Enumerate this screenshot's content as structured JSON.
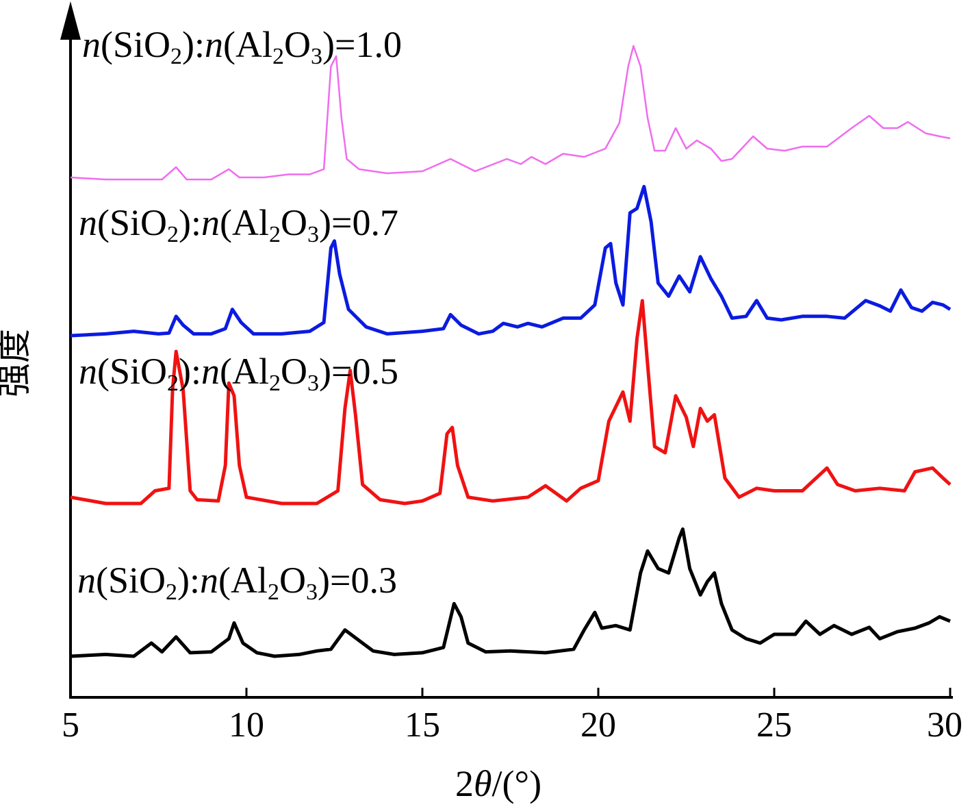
{
  "chart_data": {
    "type": "line",
    "xlabel_prefix": "2",
    "xlabel_theta": "θ",
    "xlabel_suffix": "/(°)",
    "ylabel": "强度",
    "xlim": [
      5,
      30
    ],
    "x_ticks": [
      5,
      10,
      15,
      20,
      25,
      30
    ],
    "y_scale": "arbitrary units, vertically offset traces",
    "grid": false,
    "series": [
      {
        "label_ratio": "1.0",
        "color": "#f06cf0",
        "points": [
          [
            5.0,
            0.02
          ],
          [
            6.0,
            0.0
          ],
          [
            7.0,
            0.0
          ],
          [
            7.6,
            0.0
          ],
          [
            8.0,
            0.12
          ],
          [
            8.3,
            0.0
          ],
          [
            9.0,
            0.0
          ],
          [
            9.5,
            0.1
          ],
          [
            9.8,
            0.02
          ],
          [
            10.5,
            0.02
          ],
          [
            11.2,
            0.05
          ],
          [
            11.8,
            0.05
          ],
          [
            12.2,
            0.1
          ],
          [
            12.4,
            1.1
          ],
          [
            12.55,
            1.2
          ],
          [
            12.7,
            0.6
          ],
          [
            12.85,
            0.2
          ],
          [
            13.2,
            0.1
          ],
          [
            14.0,
            0.06
          ],
          [
            15.0,
            0.08
          ],
          [
            15.8,
            0.2
          ],
          [
            16.5,
            0.08
          ],
          [
            17.4,
            0.2
          ],
          [
            17.8,
            0.15
          ],
          [
            18.1,
            0.22
          ],
          [
            18.5,
            0.15
          ],
          [
            19.0,
            0.25
          ],
          [
            19.6,
            0.22
          ],
          [
            20.2,
            0.3
          ],
          [
            20.6,
            0.55
          ],
          [
            20.85,
            1.1
          ],
          [
            21.0,
            1.3
          ],
          [
            21.2,
            1.1
          ],
          [
            21.4,
            0.6
          ],
          [
            21.6,
            0.28
          ],
          [
            21.9,
            0.28
          ],
          [
            22.2,
            0.5
          ],
          [
            22.5,
            0.3
          ],
          [
            22.8,
            0.38
          ],
          [
            23.2,
            0.3
          ],
          [
            23.5,
            0.18
          ],
          [
            23.8,
            0.2
          ],
          [
            24.4,
            0.42
          ],
          [
            24.8,
            0.3
          ],
          [
            25.3,
            0.28
          ],
          [
            25.8,
            0.32
          ],
          [
            26.5,
            0.32
          ],
          [
            27.2,
            0.5
          ],
          [
            27.7,
            0.62
          ],
          [
            28.1,
            0.5
          ],
          [
            28.5,
            0.5
          ],
          [
            28.8,
            0.56
          ],
          [
            29.3,
            0.45
          ],
          [
            29.7,
            0.42
          ],
          [
            30.0,
            0.4
          ]
        ]
      },
      {
        "label_ratio": "0.7",
        "color": "#0b1be0",
        "points": [
          [
            5.0,
            0.0
          ],
          [
            6.0,
            0.02
          ],
          [
            6.8,
            0.05
          ],
          [
            7.5,
            0.02
          ],
          [
            7.8,
            0.03
          ],
          [
            8.0,
            0.22
          ],
          [
            8.2,
            0.12
          ],
          [
            8.5,
            0.02
          ],
          [
            9.0,
            0.02
          ],
          [
            9.4,
            0.08
          ],
          [
            9.6,
            0.3
          ],
          [
            9.85,
            0.15
          ],
          [
            10.2,
            0.02
          ],
          [
            11.0,
            0.02
          ],
          [
            11.8,
            0.05
          ],
          [
            12.2,
            0.15
          ],
          [
            12.4,
            1.0
          ],
          [
            12.5,
            1.08
          ],
          [
            12.65,
            0.7
          ],
          [
            12.9,
            0.3
          ],
          [
            13.4,
            0.1
          ],
          [
            14.0,
            0.02
          ],
          [
            15.0,
            0.05
          ],
          [
            15.6,
            0.08
          ],
          [
            15.8,
            0.24
          ],
          [
            16.1,
            0.12
          ],
          [
            16.6,
            0.02
          ],
          [
            17.0,
            0.05
          ],
          [
            17.3,
            0.14
          ],
          [
            17.7,
            0.1
          ],
          [
            18.0,
            0.14
          ],
          [
            18.4,
            0.1
          ],
          [
            19.0,
            0.2
          ],
          [
            19.5,
            0.2
          ],
          [
            19.9,
            0.35
          ],
          [
            20.2,
            1.0
          ],
          [
            20.35,
            1.05
          ],
          [
            20.5,
            0.6
          ],
          [
            20.7,
            0.35
          ],
          [
            20.9,
            1.4
          ],
          [
            21.1,
            1.45
          ],
          [
            21.3,
            1.7
          ],
          [
            21.5,
            1.3
          ],
          [
            21.7,
            0.6
          ],
          [
            22.0,
            0.45
          ],
          [
            22.3,
            0.68
          ],
          [
            22.6,
            0.5
          ],
          [
            22.9,
            0.9
          ],
          [
            23.2,
            0.65
          ],
          [
            23.5,
            0.45
          ],
          [
            23.8,
            0.2
          ],
          [
            24.2,
            0.22
          ],
          [
            24.5,
            0.4
          ],
          [
            24.8,
            0.2
          ],
          [
            25.2,
            0.18
          ],
          [
            25.8,
            0.22
          ],
          [
            26.5,
            0.22
          ],
          [
            27.0,
            0.2
          ],
          [
            27.6,
            0.4
          ],
          [
            28.0,
            0.34
          ],
          [
            28.3,
            0.28
          ],
          [
            28.6,
            0.52
          ],
          [
            28.9,
            0.32
          ],
          [
            29.2,
            0.28
          ],
          [
            29.5,
            0.38
          ],
          [
            29.8,
            0.35
          ],
          [
            30.0,
            0.3
          ]
        ]
      },
      {
        "label_ratio": "0.5",
        "color": "#f01212",
        "points": [
          [
            5.0,
            0.05
          ],
          [
            6.0,
            0.0
          ],
          [
            7.0,
            0.0
          ],
          [
            7.4,
            0.1
          ],
          [
            7.8,
            0.12
          ],
          [
            7.9,
            0.9
          ],
          [
            8.0,
            1.2
          ],
          [
            8.2,
            0.9
          ],
          [
            8.4,
            0.1
          ],
          [
            8.6,
            0.03
          ],
          [
            9.2,
            0.02
          ],
          [
            9.4,
            0.3
          ],
          [
            9.5,
            0.95
          ],
          [
            9.65,
            0.85
          ],
          [
            9.8,
            0.3
          ],
          [
            10.0,
            0.05
          ],
          [
            11.0,
            0.0
          ],
          [
            12.0,
            0.0
          ],
          [
            12.6,
            0.1
          ],
          [
            12.8,
            0.75
          ],
          [
            12.95,
            1.05
          ],
          [
            13.1,
            0.7
          ],
          [
            13.3,
            0.15
          ],
          [
            13.8,
            0.03
          ],
          [
            14.5,
            0.0
          ],
          [
            15.0,
            0.02
          ],
          [
            15.5,
            0.08
          ],
          [
            15.7,
            0.55
          ],
          [
            15.85,
            0.6
          ],
          [
            16.0,
            0.3
          ],
          [
            16.3,
            0.05
          ],
          [
            17.0,
            0.02
          ],
          [
            18.0,
            0.05
          ],
          [
            18.5,
            0.14
          ],
          [
            18.8,
            0.08
          ],
          [
            19.1,
            0.02
          ],
          [
            19.5,
            0.12
          ],
          [
            20.0,
            0.18
          ],
          [
            20.3,
            0.65
          ],
          [
            20.7,
            0.88
          ],
          [
            20.9,
            0.65
          ],
          [
            21.1,
            1.3
          ],
          [
            21.25,
            1.6
          ],
          [
            21.4,
            1.1
          ],
          [
            21.6,
            0.45
          ],
          [
            21.9,
            0.4
          ],
          [
            22.2,
            0.85
          ],
          [
            22.5,
            0.68
          ],
          [
            22.7,
            0.45
          ],
          [
            22.9,
            0.75
          ],
          [
            23.1,
            0.65
          ],
          [
            23.3,
            0.7
          ],
          [
            23.6,
            0.2
          ],
          [
            24.0,
            0.05
          ],
          [
            24.5,
            0.12
          ],
          [
            25.0,
            0.1
          ],
          [
            25.8,
            0.1
          ],
          [
            26.5,
            0.28
          ],
          [
            26.8,
            0.15
          ],
          [
            27.3,
            0.1
          ],
          [
            28.0,
            0.12
          ],
          [
            28.7,
            0.1
          ],
          [
            29.0,
            0.25
          ],
          [
            29.5,
            0.28
          ],
          [
            29.8,
            0.2
          ],
          [
            30.0,
            0.15
          ]
        ]
      },
      {
        "label_ratio": "0.3",
        "color": "#000000",
        "points": [
          [
            5.0,
            0.0
          ],
          [
            6.0,
            0.02
          ],
          [
            6.8,
            0.0
          ],
          [
            7.3,
            0.15
          ],
          [
            7.6,
            0.05
          ],
          [
            8.0,
            0.22
          ],
          [
            8.4,
            0.04
          ],
          [
            9.0,
            0.05
          ],
          [
            9.5,
            0.2
          ],
          [
            9.65,
            0.38
          ],
          [
            9.9,
            0.15
          ],
          [
            10.3,
            0.04
          ],
          [
            10.8,
            0.0
          ],
          [
            11.5,
            0.02
          ],
          [
            12.0,
            0.06
          ],
          [
            12.4,
            0.08
          ],
          [
            12.8,
            0.3
          ],
          [
            13.2,
            0.18
          ],
          [
            13.6,
            0.06
          ],
          [
            14.2,
            0.02
          ],
          [
            15.0,
            0.04
          ],
          [
            15.6,
            0.1
          ],
          [
            15.9,
            0.6
          ],
          [
            16.1,
            0.45
          ],
          [
            16.3,
            0.15
          ],
          [
            16.8,
            0.05
          ],
          [
            17.5,
            0.06
          ],
          [
            18.5,
            0.04
          ],
          [
            19.3,
            0.08
          ],
          [
            19.6,
            0.3
          ],
          [
            19.9,
            0.5
          ],
          [
            20.1,
            0.32
          ],
          [
            20.5,
            0.35
          ],
          [
            20.9,
            0.3
          ],
          [
            21.2,
            0.95
          ],
          [
            21.4,
            1.2
          ],
          [
            21.7,
            1.0
          ],
          [
            22.0,
            0.95
          ],
          [
            22.3,
            1.35
          ],
          [
            22.4,
            1.45
          ],
          [
            22.6,
            1.0
          ],
          [
            22.9,
            0.7
          ],
          [
            23.1,
            0.85
          ],
          [
            23.3,
            0.95
          ],
          [
            23.5,
            0.6
          ],
          [
            23.8,
            0.3
          ],
          [
            24.2,
            0.2
          ],
          [
            24.6,
            0.15
          ],
          [
            25.0,
            0.25
          ],
          [
            25.6,
            0.25
          ],
          [
            25.9,
            0.4
          ],
          [
            26.3,
            0.25
          ],
          [
            26.7,
            0.35
          ],
          [
            27.2,
            0.25
          ],
          [
            27.7,
            0.33
          ],
          [
            28.0,
            0.2
          ],
          [
            28.5,
            0.28
          ],
          [
            29.0,
            0.32
          ],
          [
            29.4,
            0.38
          ],
          [
            29.7,
            0.45
          ],
          [
            30.0,
            0.4
          ]
        ]
      }
    ]
  },
  "labels": {
    "n": "n",
    "open": "(",
    "si_o": "SiO",
    "sub2": "2",
    "close_colon": "):",
    "al": "Al",
    "o": "O",
    "sub3": "3",
    "close_eq": ")="
  }
}
